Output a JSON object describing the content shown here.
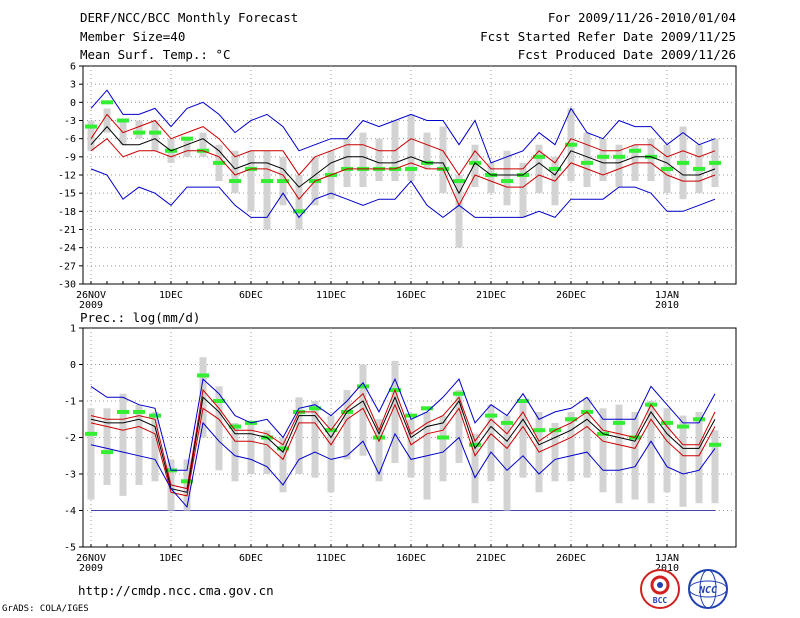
{
  "header": {
    "title": "DERF/NCC/BCC Monthly Forecast",
    "member": "Member Size=40",
    "var1": "Mean Surf. Temp.: °C",
    "period": "For 2009/11/26-2010/01/04",
    "started": "Fcst Started Refer Date 2009/11/25",
    "produced": "Fcst Produced Date 2009/11/26"
  },
  "colors": {
    "max": "#0000cc",
    "min": "#0000cc",
    "mean": "#000000",
    "sd": "#cc0000",
    "box": "#d3d3d3",
    "obs": "#33ee33",
    "base": "#4444aa"
  },
  "footer": {
    "url": "http://cmdp.ncc.cma.gov.cn",
    "grads": "GrADS: COLA/IGES",
    "logo_bcc": "BCC",
    "logo_ncc": "NCC"
  },
  "chart_data": [
    {
      "type": "line",
      "title": "Mean Surf. Temp.: °C",
      "ylim": [
        -30,
        6
      ],
      "yticks": [
        6,
        3,
        0,
        -3,
        -6,
        -9,
        -12,
        -15,
        -18,
        -21,
        -24,
        -27,
        -30
      ],
      "xlabels": [
        {
          "day": 0,
          "label": "26NOV",
          "sub": "2009"
        },
        {
          "day": 5,
          "label": "1DEC"
        },
        {
          "day": 10,
          "label": "6DEC"
        },
        {
          "day": 15,
          "label": "11DEC"
        },
        {
          "day": 20,
          "label": "16DEC"
        },
        {
          "day": 25,
          "label": "21DEC"
        },
        {
          "day": 30,
          "label": "26DEC"
        },
        {
          "day": 36,
          "label": "1JAN",
          "sub": "2010"
        }
      ],
      "days": [
        0,
        1,
        2,
        3,
        4,
        5,
        6,
        7,
        8,
        9,
        10,
        11,
        12,
        13,
        14,
        15,
        16,
        17,
        18,
        19,
        20,
        21,
        22,
        23,
        24,
        25,
        26,
        27,
        28,
        29,
        30,
        31,
        32,
        33,
        34,
        35,
        36,
        37,
        38,
        39
      ],
      "series": [
        {
          "name": "max",
          "values": [
            -1,
            2,
            -2,
            -2,
            -1,
            -4,
            -1,
            0,
            -2,
            -5,
            -3,
            -2,
            -4,
            -8,
            -7,
            -6,
            -6,
            -3,
            -4,
            -3,
            -2,
            -3,
            -3,
            -7,
            -3,
            -10,
            -9,
            -8,
            -5,
            -7,
            -1,
            -5,
            -6,
            -3,
            -4,
            -4,
            -7,
            -5,
            -7,
            -6
          ]
        },
        {
          "name": "sd_upper",
          "values": [
            -6,
            -2,
            -5,
            -4,
            -3,
            -6,
            -5,
            -4,
            -6,
            -9,
            -8,
            -8,
            -8,
            -12,
            -9,
            -8,
            -7,
            -7,
            -8,
            -8,
            -6,
            -7,
            -8,
            -12,
            -8,
            -11,
            -11,
            -11,
            -8,
            -10,
            -6,
            -7,
            -8,
            -8,
            -7,
            -7,
            -9,
            -8,
            -9,
            -8
          ]
        },
        {
          "name": "mean",
          "values": [
            -7,
            -4,
            -7,
            -7,
            -6,
            -8,
            -7,
            -6,
            -8,
            -11,
            -10,
            -10,
            -11,
            -14,
            -12,
            -10,
            -9,
            -9,
            -10,
            -10,
            -9,
            -10,
            -10,
            -15,
            -10,
            -12,
            -12,
            -12,
            -10,
            -12,
            -8,
            -9,
            -10,
            -10,
            -9,
            -9,
            -10,
            -12,
            -12,
            -11
          ]
        },
        {
          "name": "sd_lower",
          "values": [
            -8,
            -6,
            -9,
            -8,
            -8,
            -9,
            -8,
            -8,
            -9,
            -12,
            -11,
            -11,
            -12,
            -16,
            -13,
            -12,
            -11,
            -11,
            -11,
            -11,
            -10,
            -11,
            -11,
            -17,
            -12,
            -13,
            -14,
            -14,
            -12,
            -13,
            -10,
            -11,
            -12,
            -11,
            -10,
            -10,
            -12,
            -13,
            -13,
            -12
          ]
        },
        {
          "name": "min",
          "values": [
            -11,
            -12,
            -16,
            -14,
            -15,
            -17,
            -14,
            -14,
            -14,
            -17,
            -19,
            -19,
            -15,
            -19,
            -16,
            -15,
            -16,
            -17,
            -16,
            -16,
            -13,
            -17,
            -19,
            -17,
            -19,
            -19,
            -19,
            -19,
            -18,
            -19,
            -16,
            -16,
            -16,
            -14,
            -14,
            -15,
            -18,
            -18,
            -17,
            -16
          ]
        }
      ],
      "boxes": [
        [
          -8,
          -3
        ],
        [
          -5,
          -1
        ],
        [
          -7,
          -3
        ],
        [
          -6,
          -3
        ],
        [
          -8,
          -3
        ],
        [
          -10,
          -6
        ],
        [
          -9,
          -6
        ],
        [
          -9,
          -5
        ],
        [
          -13,
          -7
        ],
        [
          -15,
          -8
        ],
        [
          -18,
          -8
        ],
        [
          -21,
          -8
        ],
        [
          -17,
          -9
        ],
        [
          -21,
          -12
        ],
        [
          -17,
          -9
        ],
        [
          -16,
          -8
        ],
        [
          -14,
          -6
        ],
        [
          -14,
          -5
        ],
        [
          -13,
          -6
        ],
        [
          -13,
          -3
        ],
        [
          -13,
          -2
        ],
        [
          -11,
          -5
        ],
        [
          -15,
          -4
        ],
        [
          -24,
          -12
        ],
        [
          -14,
          -7
        ],
        [
          -15,
          -10
        ],
        [
          -17,
          -8
        ],
        [
          -19,
          -10
        ],
        [
          -15,
          -7
        ],
        [
          -17,
          -9
        ],
        [
          -13,
          -1
        ],
        [
          -14,
          -5
        ],
        [
          -13,
          -6
        ],
        [
          -14,
          -7
        ],
        [
          -13,
          -7
        ],
        [
          -13,
          -6
        ],
        [
          -15,
          -7
        ],
        [
          -16,
          -4
        ],
        [
          -15,
          -7
        ],
        [
          -14,
          -6
        ]
      ],
      "obs": [
        -4,
        0,
        -3,
        -5,
        -5,
        -8,
        -6,
        -8,
        -10,
        -13,
        -11,
        -13,
        -13,
        -18,
        -13,
        -12,
        -11,
        -11,
        -11,
        -11,
        -11,
        -10,
        -11,
        -13,
        -10,
        -12,
        -13,
        -12,
        -9,
        -11,
        -7,
        -10,
        -9,
        -9,
        -8,
        -9,
        -11,
        -10,
        -11,
        -10
      ]
    },
    {
      "type": "line",
      "title": "Prec.: log(mm/d)",
      "ylim": [
        -5,
        1
      ],
      "yticks": [
        1,
        0,
        -1,
        -2,
        -3,
        -4,
        -5
      ],
      "xlabels": [
        {
          "day": 0,
          "label": "26NOV",
          "sub": "2009"
        },
        {
          "day": 5,
          "label": "1DEC"
        },
        {
          "day": 10,
          "label": "6DEC"
        },
        {
          "day": 15,
          "label": "11DEC"
        },
        {
          "day": 20,
          "label": "16DEC"
        },
        {
          "day": 25,
          "label": "21DEC"
        },
        {
          "day": 30,
          "label": "26DEC"
        },
        {
          "day": 36,
          "label": "1JAN",
          "sub": "2010"
        }
      ],
      "baseline": -4,
      "days": [
        0,
        1,
        2,
        3,
        4,
        5,
        6,
        7,
        8,
        9,
        10,
        11,
        12,
        13,
        14,
        15,
        16,
        17,
        18,
        19,
        20,
        21,
        22,
        23,
        24,
        25,
        26,
        27,
        28,
        29,
        30,
        31,
        32,
        33,
        34,
        35,
        36,
        37,
        38,
        39
      ],
      "series": [
        {
          "name": "max",
          "values": [
            -0.6,
            -0.9,
            -0.9,
            -1.1,
            -1.2,
            -2.9,
            -2.9,
            -0.4,
            -0.8,
            -1.4,
            -1.6,
            -1.5,
            -2.0,
            -1.2,
            -1.1,
            -1.4,
            -1.0,
            -0.5,
            -1.3,
            -0.4,
            -1.5,
            -1.3,
            -0.9,
            -0.4,
            -1.6,
            -1.1,
            -1.4,
            -0.8,
            -1.5,
            -1.3,
            -1.2,
            -0.9,
            -1.5,
            -1.5,
            -1.5,
            -0.6,
            -1.1,
            -1.6,
            -1.6,
            -0.8
          ]
        },
        {
          "name": "sd_upper",
          "values": [
            -1.4,
            -1.5,
            -1.5,
            -1.4,
            -1.5,
            -3.3,
            -3.4,
            -0.7,
            -1.2,
            -1.8,
            -1.8,
            -1.9,
            -2.2,
            -1.3,
            -1.3,
            -1.8,
            -1.2,
            -0.8,
            -1.8,
            -0.7,
            -1.9,
            -1.6,
            -1.4,
            -0.9,
            -2.1,
            -1.5,
            -1.9,
            -1.3,
            -2.1,
            -1.8,
            -1.6,
            -1.3,
            -1.8,
            -1.9,
            -2.0,
            -1.1,
            -1.7,
            -2.2,
            -2.2,
            -1.3
          ]
        },
        {
          "name": "mean",
          "values": [
            -1.5,
            -1.6,
            -1.6,
            -1.5,
            -1.7,
            -3.4,
            -3.5,
            -0.9,
            -1.3,
            -1.9,
            -1.9,
            -2.0,
            -2.4,
            -1.4,
            -1.4,
            -2.0,
            -1.3,
            -1.0,
            -1.9,
            -0.9,
            -2.0,
            -1.7,
            -1.6,
            -1.0,
            -2.3,
            -1.7,
            -2.1,
            -1.5,
            -2.2,
            -2.0,
            -1.8,
            -1.5,
            -1.9,
            -2.0,
            -2.1,
            -1.3,
            -1.9,
            -2.3,
            -2.3,
            -1.5
          ]
        },
        {
          "name": "sd_lower",
          "values": [
            -1.6,
            -1.7,
            -1.8,
            -1.7,
            -1.9,
            -3.5,
            -3.6,
            -1.2,
            -1.5,
            -2.1,
            -2.1,
            -2.2,
            -2.6,
            -1.6,
            -1.6,
            -2.2,
            -1.5,
            -1.2,
            -2.1,
            -1.1,
            -2.2,
            -1.9,
            -1.8,
            -1.2,
            -2.5,
            -1.9,
            -2.3,
            -1.7,
            -2.4,
            -2.2,
            -2.0,
            -1.7,
            -2.1,
            -2.2,
            -2.3,
            -1.5,
            -2.1,
            -2.5,
            -2.5,
            -1.7
          ]
        },
        {
          "name": "min",
          "values": [
            -2.2,
            -2.3,
            -2.4,
            -2.5,
            -2.6,
            -3.4,
            -3.9,
            -1.6,
            -2.1,
            -2.5,
            -2.6,
            -2.8,
            -3.3,
            -2.6,
            -2.4,
            -2.6,
            -2.5,
            -2.1,
            -3.0,
            -1.9,
            -2.6,
            -2.5,
            -2.4,
            -2.0,
            -3.1,
            -2.4,
            -2.9,
            -2.5,
            -3.0,
            -2.6,
            -2.5,
            -2.4,
            -2.9,
            -2.9,
            -2.8,
            -2.1,
            -2.8,
            -3.0,
            -2.9,
            -2.3
          ]
        }
      ],
      "boxes": [
        [
          -3.7,
          -1.2
        ],
        [
          -3.3,
          -1.2
        ],
        [
          -3.6,
          -0.8
        ],
        [
          -3.3,
          -1.1
        ],
        [
          -3.2,
          -1.3
        ],
        [
          -4.0,
          -2.6
        ],
        [
          -4.0,
          -2.6
        ],
        [
          -2.0,
          0.2
        ],
        [
          -2.9,
          -0.6
        ],
        [
          -3.2,
          -1.6
        ],
        [
          -3.0,
          -1.6
        ],
        [
          -3.0,
          -1.8
        ],
        [
          -3.5,
          -2.0
        ],
        [
          -3.0,
          -0.9
        ],
        [
          -3.1,
          -1.0
        ],
        [
          -3.5,
          -1.4
        ],
        [
          -2.6,
          -0.7
        ],
        [
          -2.5,
          0.0
        ],
        [
          -3.2,
          -1.5
        ],
        [
          -2.7,
          0.1
        ],
        [
          -3.1,
          -1.5
        ],
        [
          -3.7,
          -1.3
        ],
        [
          -3.2,
          -1.4
        ],
        [
          -2.7,
          -0.7
        ],
        [
          -3.8,
          -1.9
        ],
        [
          -3.2,
          -1.1
        ],
        [
          -4.0,
          -1.4
        ],
        [
          -3.1,
          -1.0
        ],
        [
          -3.5,
          -1.3
        ],
        [
          -3.2,
          -1.6
        ],
        [
          -3.2,
          -1.3
        ],
        [
          -3.1,
          -0.9
        ],
        [
          -3.5,
          -1.2
        ],
        [
          -3.8,
          -1.1
        ],
        [
          -3.7,
          -1.3
        ],
        [
          -3.8,
          -1.0
        ],
        [
          -3.5,
          -1.2
        ],
        [
          -3.9,
          -1.4
        ],
        [
          -3.8,
          -1.3
        ],
        [
          -3.8,
          -1.8
        ]
      ],
      "obs": [
        -1.9,
        -2.4,
        -1.3,
        -1.3,
        -1.4,
        -2.9,
        -3.2,
        -0.3,
        -1.0,
        -1.7,
        -1.6,
        -2.0,
        -2.3,
        -1.3,
        -1.2,
        -1.8,
        -1.3,
        -0.6,
        -2.0,
        -0.7,
        -1.4,
        -1.2,
        -2.0,
        -0.8,
        -2.2,
        -1.4,
        -1.6,
        -1.0,
        -1.8,
        -1.8,
        -1.5,
        -1.3,
        -1.9,
        -1.6,
        -2.0,
        -1.1,
        -1.6,
        -1.7,
        -1.5,
        -2.2
      ]
    }
  ]
}
